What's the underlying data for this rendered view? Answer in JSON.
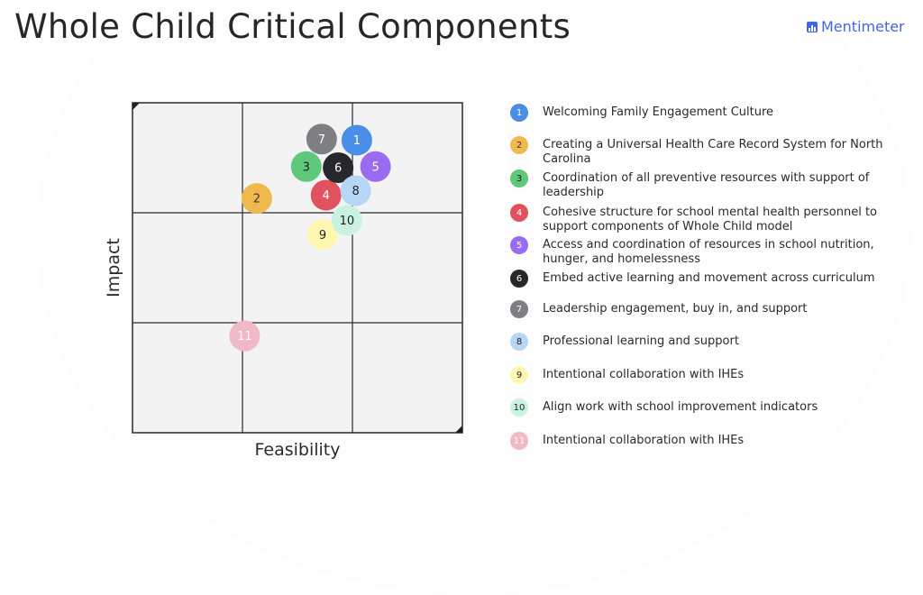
{
  "page": {
    "title": "Whole Child Critical Components",
    "brand": "Mentimeter"
  },
  "chart_data": {
    "type": "scatter",
    "title": "Whole Child Critical Components",
    "xlabel": "Feasibility",
    "ylabel": "Impact",
    "xlim": [
      0,
      3
    ],
    "ylim": [
      0,
      3
    ],
    "grid": true,
    "legend": "right",
    "points": [
      {
        "label": "1",
        "x": 2.04,
        "y": 2.66,
        "color": "#4a8fe7",
        "text_color": "#ffffff"
      },
      {
        "label": "2",
        "x": 1.13,
        "y": 2.13,
        "color": "#f0b94d",
        "text_color": "#3a3a3a"
      },
      {
        "label": "3",
        "x": 1.58,
        "y": 2.42,
        "color": "#5fc87a",
        "text_color": "#1f2024"
      },
      {
        "label": "4",
        "x": 1.76,
        "y": 2.16,
        "color": "#e0525d",
        "text_color": "#ffffff"
      },
      {
        "label": "5",
        "x": 2.21,
        "y": 2.42,
        "color": "#9a6bf0",
        "text_color": "#ffffff"
      },
      {
        "label": "6",
        "x": 1.87,
        "y": 2.41,
        "color": "#26282b",
        "text_color": "#ffffff"
      },
      {
        "label": "7",
        "x": 1.72,
        "y": 2.67,
        "color": "#7d7f83",
        "text_color": "#ffffff"
      },
      {
        "label": "8",
        "x": 2.03,
        "y": 2.2,
        "color": "#b6d6f5",
        "text_color": "#1f2024"
      },
      {
        "label": "9",
        "x": 1.73,
        "y": 1.8,
        "color": "#fff7b0",
        "text_color": "#1f2024"
      },
      {
        "label": "10",
        "x": 1.95,
        "y": 1.93,
        "color": "#c9f2df",
        "text_color": "#1f2024"
      },
      {
        "label": "11",
        "x": 1.02,
        "y": 0.88,
        "color": "#f1b8c6",
        "text_color": "#ffffff"
      }
    ],
    "legend_items": [
      {
        "num": "1",
        "text": "Welcoming Family Engagement Culture"
      },
      {
        "num": "2",
        "text": "Creating a Universal Health Care Record System for North Carolina"
      },
      {
        "num": "3",
        "text": "Coordination of all preventive resources with support of leadership"
      },
      {
        "num": "4",
        "text": "Cohesive structure for school mental health personnel to support components of Whole Child model"
      },
      {
        "num": "5",
        "text": "Access and coordination of resources in school nutrition, hunger, and homelessness"
      },
      {
        "num": "6",
        "text": "Embed active learning and movement across curriculum"
      },
      {
        "num": "7",
        "text": "Leadership engagement, buy in, and support"
      },
      {
        "num": "8",
        "text": "Professional learning and support"
      },
      {
        "num": "9",
        "text": "Intentional collaboration with IHEs"
      },
      {
        "num": "10",
        "text": "Align work with school improvement indicators"
      },
      {
        "num": "11",
        "text": "Intentional collaboration with IHEs"
      }
    ]
  }
}
